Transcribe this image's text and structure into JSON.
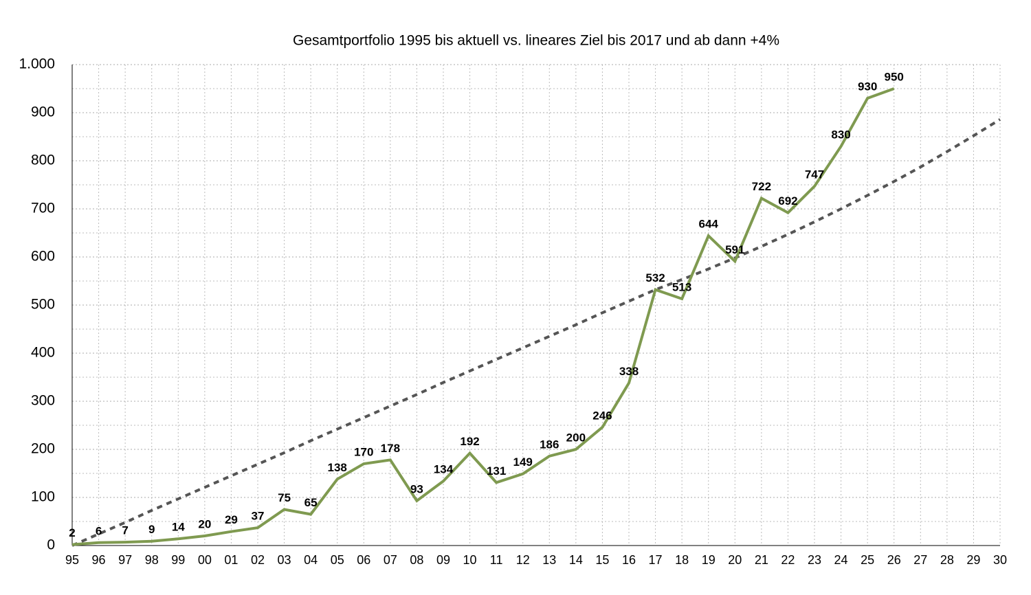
{
  "chart_data": {
    "type": "line",
    "title": "Gesamtportfolio 1995 bis aktuell vs. lineares Ziel bis 2017 und ab dann +4%",
    "categories": [
      "95",
      "96",
      "97",
      "98",
      "99",
      "00",
      "01",
      "02",
      "03",
      "04",
      "05",
      "06",
      "07",
      "08",
      "09",
      "10",
      "11",
      "12",
      "13",
      "14",
      "15",
      "16",
      "17",
      "18",
      "19",
      "20",
      "21",
      "22",
      "23",
      "24",
      "25",
      "26",
      "27",
      "28",
      "29",
      "30"
    ],
    "series": [
      {
        "color": "#7f9a50",
        "dashed": false,
        "data_labels": true,
        "values": [
          2,
          6,
          7,
          9,
          14,
          20,
          29,
          37,
          75,
          65,
          138,
          170,
          178,
          93,
          134,
          192,
          131,
          149,
          186,
          200,
          246,
          338,
          532,
          513,
          644,
          591,
          722,
          692,
          747,
          830,
          930,
          950,
          null,
          null,
          null,
          null
        ]
      },
      {
        "color": "#555555",
        "dashed": true,
        "data_labels": false,
        "values": [
          0,
          24,
          48,
          73,
          97,
          121,
          145,
          169,
          193,
          218,
          242,
          266,
          290,
          314,
          339,
          363,
          387,
          411,
          435,
          459,
          484,
          508,
          532,
          553,
          575,
          598,
          622,
          647,
          673,
          700,
          728,
          757,
          787,
          819,
          852,
          886
        ]
      }
    ],
    "ylim": [
      0,
      1000
    ],
    "yticks": [
      0,
      100,
      200,
      300,
      400,
      500,
      600,
      700,
      800,
      900,
      {
        "value": 1000,
        "label": "1.000"
      }
    ],
    "yminor": [
      50,
      150,
      250,
      350,
      450,
      550,
      650,
      750,
      850,
      950
    ],
    "grid": true
  }
}
